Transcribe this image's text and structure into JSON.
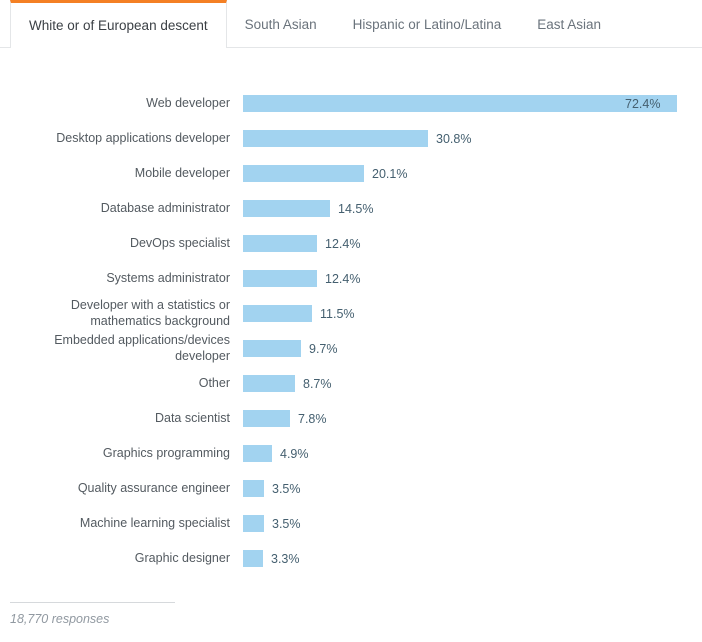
{
  "tabs": [
    {
      "label": "White or of European descent",
      "active": true
    },
    {
      "label": "South Asian",
      "active": false
    },
    {
      "label": "Hispanic or Latino/Latina",
      "active": false
    },
    {
      "label": "East Asian",
      "active": false
    }
  ],
  "chart_data": {
    "type": "bar",
    "orientation": "horizontal",
    "categories": [
      "Web developer",
      "Desktop applications developer",
      "Mobile developer",
      "Database administrator",
      "DevOps specialist",
      "Systems administrator",
      "Developer with a statistics or mathematics background",
      "Embedded applications/devices developer",
      "Other",
      "Data scientist",
      "Graphics programming",
      "Quality assurance engineer",
      "Machine learning specialist",
      "Graphic designer"
    ],
    "values": [
      72.4,
      30.8,
      20.1,
      14.5,
      12.4,
      12.4,
      11.5,
      9.7,
      8.7,
      7.8,
      4.9,
      3.5,
      3.5,
      3.3
    ],
    "value_suffix": "%",
    "xlim": [
      0,
      75
    ],
    "grid": false,
    "legend": false,
    "bar_color": "#a2d3f0",
    "value_label_color": "#445f6f"
  },
  "footer": {
    "responses": "18,770 responses"
  },
  "colors": {
    "accent_orange": "#f48024",
    "bar_blue": "#a2d3f0",
    "tab_inactive_text": "#6a737c",
    "tab_active_text": "#3b4045",
    "divider": "#e4e6e8"
  }
}
